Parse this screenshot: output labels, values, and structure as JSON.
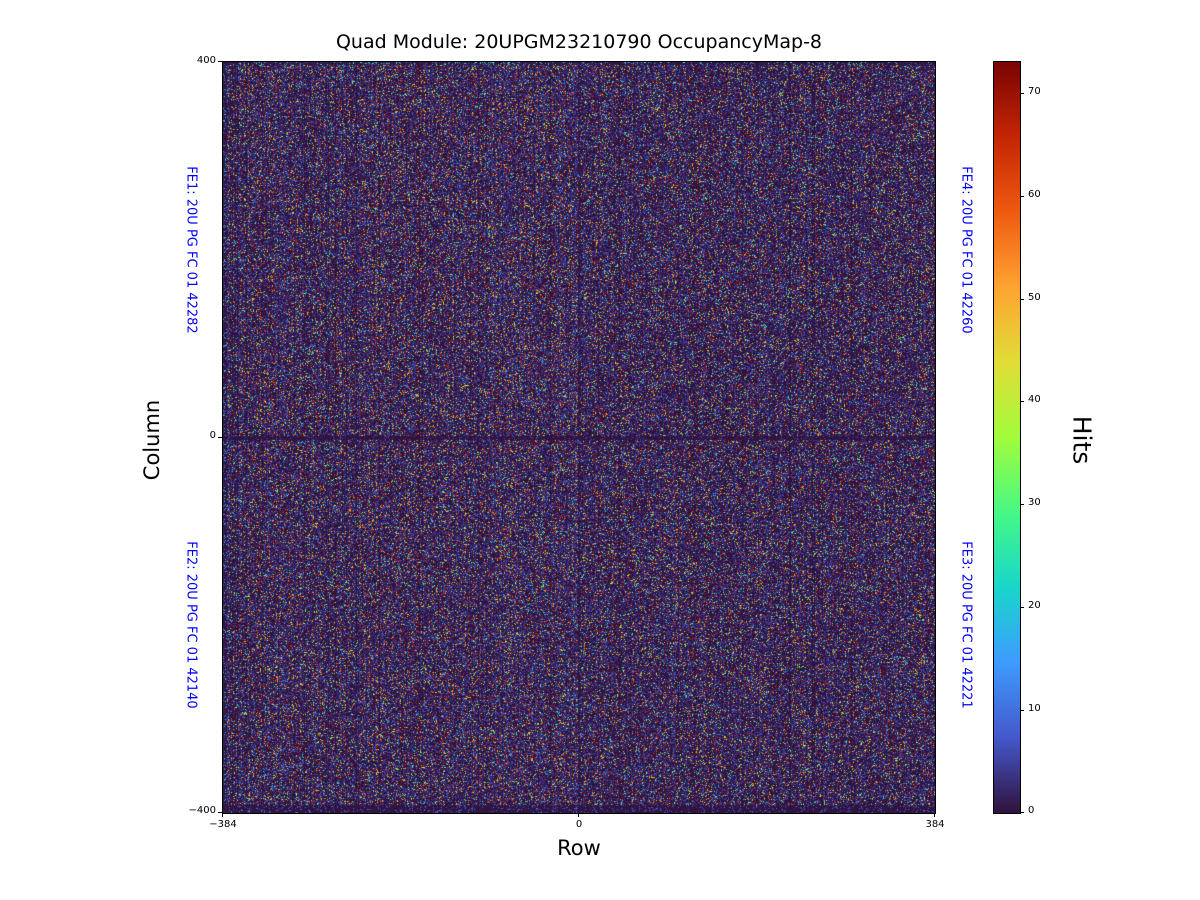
{
  "chart_data": {
    "type": "heatmap",
    "title": "Quad Module: 20UPGM23210790 OccupancyMap-8",
    "xlabel": "Row",
    "ylabel": "Column",
    "xlim": [
      -384,
      384
    ],
    "ylim": [
      -400,
      400
    ],
    "xticks": [
      "−384",
      "0",
      "384"
    ],
    "yticks": [
      "400",
      "0",
      "−400"
    ],
    "grid": false,
    "colormap": "turbo",
    "background_value_color": "#30123b",
    "pattern_note": "dense random speckle occupancy with fine vertical stripe structure; dark separator bands at chip boundaries (row 0 horizontal line, column 0 vertical line) and along bottom edge",
    "colorbar": {
      "label": "Hits",
      "vmin": 0,
      "vmax": 73,
      "ticks": [
        "70",
        "60",
        "50",
        "40",
        "30",
        "20",
        "10",
        "0"
      ]
    },
    "frontend_labels": [
      {
        "id": "FE1",
        "text": "FE1: 20U PG FC 01 42282",
        "position": "left-top"
      },
      {
        "id": "FE2",
        "text": "FE2: 20U PG FC 01 42140",
        "position": "left-bottom"
      },
      {
        "id": "FE3",
        "text": "FE3: 20U PG FC 01 42221",
        "position": "right-bottom"
      },
      {
        "id": "FE4",
        "text": "FE4: 20U PG FC 01 42260",
        "position": "right-top"
      }
    ],
    "label_color": "#0000ff"
  }
}
